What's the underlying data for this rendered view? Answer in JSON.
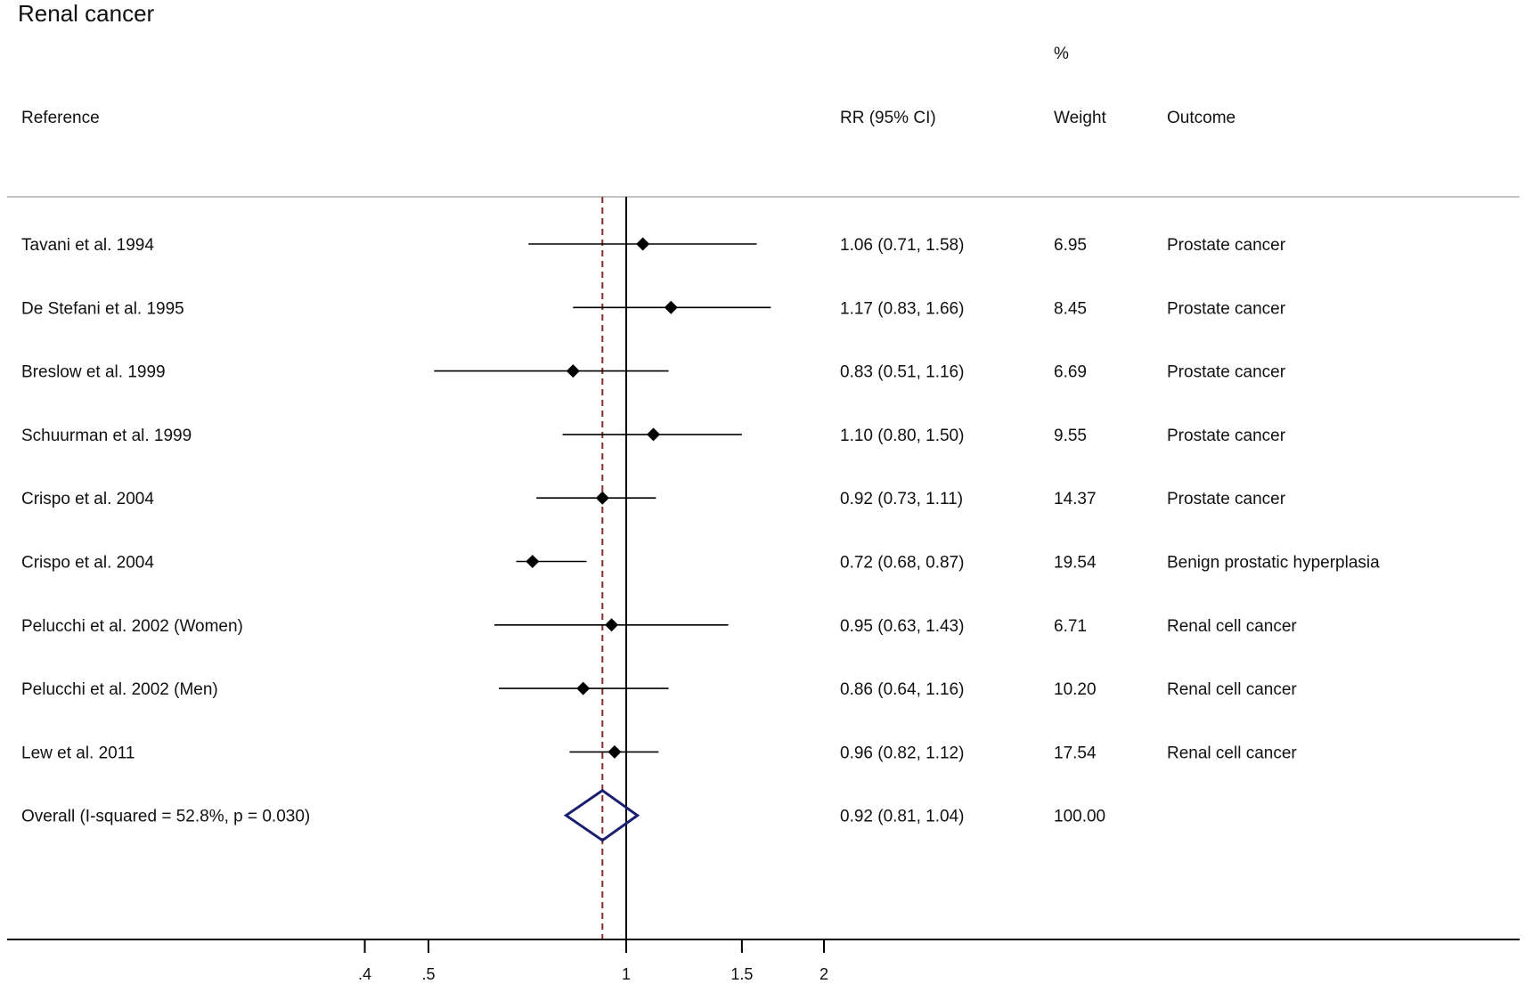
{
  "chart_data": {
    "type": "forest",
    "title": "Renal cancer",
    "headers": {
      "reference": "Reference",
      "estimate": "RR (95% CI)",
      "weight_top": "%",
      "weight": "Weight",
      "outcome": "Outcome"
    },
    "x_scale": "log",
    "xlim": [
      0.35,
      2.8
    ],
    "xticks": [
      {
        "value": 0.4,
        "label": ".4"
      },
      {
        "value": 0.5,
        "label": ".5"
      },
      {
        "value": 1,
        "label": "1"
      },
      {
        "value": 1.5,
        "label": "1.5"
      },
      {
        "value": 2,
        "label": "2"
      }
    ],
    "null_line": 1,
    "pooled_line": 0.92,
    "studies": [
      {
        "reference": "Tavani et al. 1994",
        "rr": 1.06,
        "lo": 0.71,
        "hi": 1.58,
        "ci_text": "1.06 (0.71, 1.58)",
        "weight": "6.95",
        "outcome": "Prostate cancer"
      },
      {
        "reference": "De Stefani et al. 1995",
        "rr": 1.17,
        "lo": 0.83,
        "hi": 1.66,
        "ci_text": "1.17 (0.83, 1.66)",
        "weight": "8.45",
        "outcome": "Prostate cancer"
      },
      {
        "reference": "Breslow et al. 1999",
        "rr": 0.83,
        "lo": 0.51,
        "hi": 1.16,
        "ci_text": "0.83 (0.51, 1.16)",
        "weight": "6.69",
        "outcome": "Prostate cancer"
      },
      {
        "reference": "Schuurman et al. 1999",
        "rr": 1.1,
        "lo": 0.8,
        "hi": 1.5,
        "ci_text": "1.10 (0.80, 1.50)",
        "weight": "9.55",
        "outcome": "Prostate cancer"
      },
      {
        "reference": "Crispo et al. 2004",
        "rr": 0.92,
        "lo": 0.73,
        "hi": 1.11,
        "ci_text": "0.92 (0.73, 1.11)",
        "weight": "14.37",
        "outcome": "Prostate cancer"
      },
      {
        "reference": "Crispo et al. 2004",
        "rr": 0.72,
        "lo": 0.68,
        "hi": 0.87,
        "ci_text": "0.72 (0.68, 0.87)",
        "weight": "19.54",
        "outcome": "Benign prostatic hyperplasia"
      },
      {
        "reference": "Pelucchi et al. 2002 (Women)",
        "rr": 0.95,
        "lo": 0.63,
        "hi": 1.43,
        "ci_text": "0.95 (0.63, 1.43)",
        "weight": "6.71",
        "outcome": "Renal cell cancer"
      },
      {
        "reference": "Pelucchi et al. 2002 (Men)",
        "rr": 0.86,
        "lo": 0.64,
        "hi": 1.16,
        "ci_text": "0.86 (0.64, 1.16)",
        "weight": "10.20",
        "outcome": "Renal cell cancer"
      },
      {
        "reference": "Lew et al. 2011",
        "rr": 0.96,
        "lo": 0.82,
        "hi": 1.12,
        "ci_text": "0.96 (0.82, 1.12)",
        "weight": "17.54",
        "outcome": "Renal cell cancer"
      }
    ],
    "overall": {
      "reference": "Overall  (I-squared = 52.8%, p = 0.030)",
      "rr": 0.92,
      "lo": 0.81,
      "hi": 1.04,
      "ci_text": "0.92 (0.81, 1.04)",
      "weight": "100.00",
      "outcome": ""
    },
    "colors": {
      "text": "#111111",
      "marker": "#000000",
      "null_line": "#000000",
      "pooled_line": "#8b2a2a",
      "overall_diamond": "#1a1f6e",
      "header_rule": "#c4c4c4"
    }
  }
}
